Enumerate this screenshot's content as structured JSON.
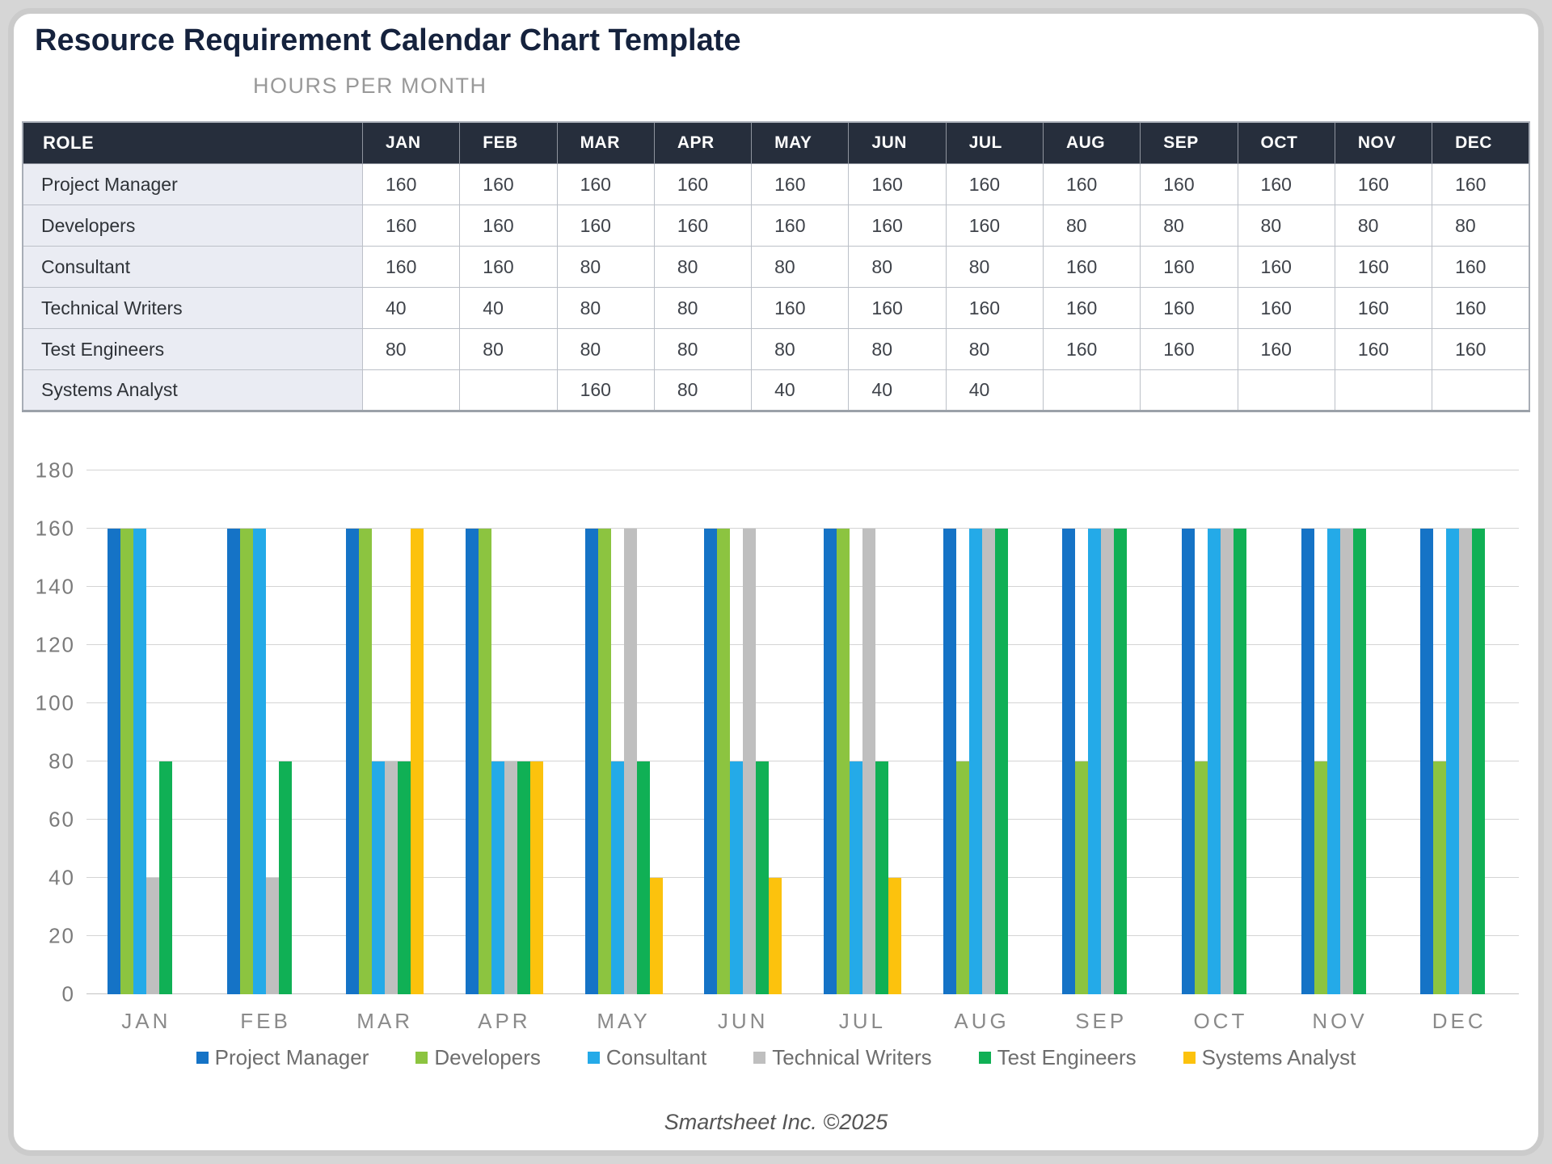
{
  "page": {
    "title": "Resource Requirement Calendar Chart Template",
    "subtitle": "HOURS PER MONTH",
    "footer": "Smartsheet Inc. ©2025"
  },
  "table": {
    "role_header": "ROLE",
    "months": [
      "JAN",
      "FEB",
      "MAR",
      "APR",
      "MAY",
      "JUN",
      "JUL",
      "AUG",
      "SEP",
      "OCT",
      "NOV",
      "DEC"
    ],
    "rows": [
      {
        "role": "Project Manager",
        "values": [
          160,
          160,
          160,
          160,
          160,
          160,
          160,
          160,
          160,
          160,
          160,
          160
        ]
      },
      {
        "role": "Developers",
        "values": [
          160,
          160,
          160,
          160,
          160,
          160,
          160,
          80,
          80,
          80,
          80,
          80
        ]
      },
      {
        "role": "Consultant",
        "values": [
          160,
          160,
          80,
          80,
          80,
          80,
          80,
          160,
          160,
          160,
          160,
          160
        ]
      },
      {
        "role": "Technical Writers",
        "values": [
          40,
          40,
          80,
          80,
          160,
          160,
          160,
          160,
          160,
          160,
          160,
          160
        ]
      },
      {
        "role": "Test Engineers",
        "values": [
          80,
          80,
          80,
          80,
          80,
          80,
          80,
          160,
          160,
          160,
          160,
          160
        ]
      },
      {
        "role": "Systems Analyst",
        "values": [
          null,
          null,
          160,
          80,
          40,
          40,
          40,
          null,
          null,
          null,
          null,
          null
        ]
      }
    ]
  },
  "chart_data": {
    "type": "bar",
    "title": "HOURS PER MONTH",
    "categories": [
      "JAN",
      "FEB",
      "MAR",
      "APR",
      "MAY",
      "JUN",
      "JUL",
      "AUG",
      "SEP",
      "OCT",
      "NOV",
      "DEC"
    ],
    "series": [
      {
        "name": "Project Manager",
        "color": "#1573c6",
        "values": [
          160,
          160,
          160,
          160,
          160,
          160,
          160,
          160,
          160,
          160,
          160,
          160
        ]
      },
      {
        "name": "Developers",
        "color": "#8cc440",
        "values": [
          160,
          160,
          160,
          160,
          160,
          160,
          160,
          80,
          80,
          80,
          80,
          80
        ]
      },
      {
        "name": "Consultant",
        "color": "#24aae8",
        "values": [
          160,
          160,
          80,
          80,
          80,
          80,
          80,
          160,
          160,
          160,
          160,
          160
        ]
      },
      {
        "name": "Technical Writers",
        "color": "#bfbfbf",
        "values": [
          40,
          40,
          80,
          80,
          160,
          160,
          160,
          160,
          160,
          160,
          160,
          160
        ]
      },
      {
        "name": "Test Engineers",
        "color": "#10b055",
        "values": [
          80,
          80,
          80,
          80,
          80,
          80,
          80,
          160,
          160,
          160,
          160,
          160
        ]
      },
      {
        "name": "Systems Analyst",
        "color": "#fcc20d",
        "values": [
          null,
          null,
          160,
          80,
          40,
          40,
          40,
          null,
          null,
          null,
          null,
          null
        ]
      }
    ],
    "xlabel": "",
    "ylabel": "",
    "ylim": [
      0,
      180
    ],
    "ytick_step": 20,
    "grid": true,
    "legend_position": "bottom"
  }
}
